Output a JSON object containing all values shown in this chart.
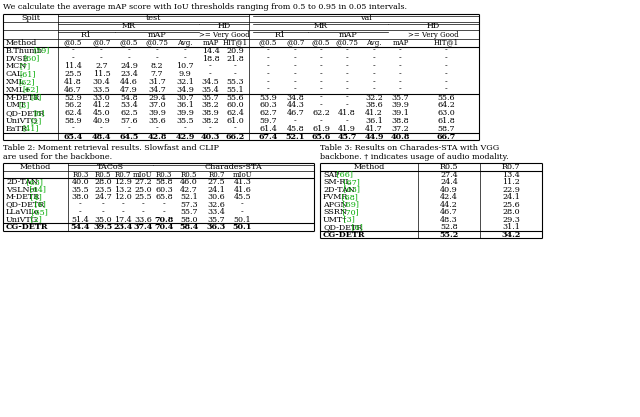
{
  "top_text": "We calculate the average mAP score with IoU thresholds ranging from 0.5 to 0.95 in 0.05 intervals.",
  "table2_caption_l1": "Table 2: Moment retrieval results. Slowfast and CLIP",
  "table2_caption_l2": "are used for the backbone.",
  "table3_caption_l1": "Table 3: Results on Charades-STA with VGG",
  "table3_caption_l2": "backbone. † indicates usage of audio modality.",
  "green": "#00aa00",
  "black": "#000000",
  "table1": {
    "rows": [
      [
        "B.Thumb [59]",
        "B.Thumb",
        "[59]",
        "-",
        "-",
        "-",
        "-",
        "-",
        "14.4",
        "20.9",
        "-",
        "-",
        "-",
        "-",
        "-",
        "-",
        "-"
      ],
      [
        "DVSE [60]",
        "DVSE",
        "[60]",
        "-",
        "-",
        "-",
        "-",
        "-",
        "18.8",
        "21.8",
        "-",
        "-",
        "-",
        "-",
        "-",
        "-",
        "-"
      ],
      [
        "MCN [7]",
        "MCN",
        "[7]",
        "11.4",
        "2.7",
        "24.9",
        "8.2",
        "10.7",
        "-",
        "-",
        "-",
        "-",
        "-",
        "-",
        "-",
        "-",
        "-"
      ],
      [
        "CAL [61]",
        "CAL",
        "[61]",
        "25.5",
        "11.5",
        "23.4",
        "7.7",
        "9.9",
        "-",
        "-",
        "-",
        "-",
        "-",
        "-",
        "-",
        "-",
        "-"
      ],
      [
        "XML [62]",
        "XML",
        "[62]",
        "41.8",
        "30.4",
        "44.6",
        "31.7",
        "32.1",
        "34.5",
        "55.3",
        "-",
        "-",
        "-",
        "-",
        "-",
        "-",
        "-"
      ],
      [
        "XML+[62]",
        "XML+",
        "[62]",
        "46.7",
        "33.5",
        "47.9",
        "34.7",
        "34.9",
        "35.4",
        "55.1",
        "-",
        "-",
        "-",
        "-",
        "-",
        "-",
        "-"
      ],
      [
        "M-DETR [4]",
        "M-DETR",
        "[4]",
        "52.9",
        "33.0",
        "54.8",
        "29.4",
        "30.7",
        "35.7",
        "55.6",
        "53.9",
        "34.8",
        "-",
        "-",
        "32.2",
        "35.7",
        "55.6"
      ],
      [
        "UMT [3]",
        "UMT",
        "[3]",
        "56.2",
        "41.2",
        "53.4",
        "37.0",
        "36.1",
        "38.2",
        "60.0",
        "60.3",
        "44.3",
        "-",
        "-",
        "38.6",
        "39.9",
        "64.2"
      ],
      [
        "QD-DETR [6]",
        "QD-DETR",
        "[6]",
        "62.4",
        "45.0",
        "62.5",
        "39.9",
        "39.9",
        "38.9",
        "62.4",
        "62.7",
        "46.7",
        "62.2",
        "41.8",
        "41.2",
        "39.1",
        "63.0"
      ],
      [
        "UniVTG [2]",
        "UniVTG",
        "[2]",
        "58.9",
        "40.9",
        "57.6",
        "35.6",
        "35.5",
        "38.2",
        "61.0",
        "59.7",
        "-",
        "-",
        "-",
        "36.1",
        "38.8",
        "61.8"
      ],
      [
        "EaTR [41]",
        "EaTR",
        "[41]",
        "-",
        "-",
        "-",
        "-",
        "-",
        "-",
        "-",
        "61.4",
        "45.8",
        "61.9",
        "41.9",
        "41.7",
        "37.2",
        "58.7"
      ],
      [
        "CG-DETR",
        "",
        "",
        "65.4",
        "48.4",
        "64.5",
        "42.8",
        "42.9",
        "40.3",
        "66.2",
        "67.4",
        "52.1",
        "65.6",
        "45.7",
        "44.9",
        "40.8",
        "66.7"
      ]
    ]
  },
  "table2": {
    "rows": [
      [
        "2D-TAN",
        "[63]",
        "40.0",
        "28.0",
        "12.9",
        "27.2",
        "58.8",
        "46.0",
        "27.5",
        "41.3"
      ],
      [
        "VSLNet",
        "[64]",
        "35.5",
        "23.5",
        "13.2",
        "25.0",
        "60.3",
        "42.7",
        "24.1",
        "41.6"
      ],
      [
        "M-DETR",
        "[4]",
        "38.0",
        "24.7",
        "12.0",
        "25.5",
        "65.8",
        "52.1",
        "30.6",
        "45.5"
      ],
      [
        "QD-DETR",
        "[6]",
        "-",
        "-",
        "-",
        "-",
        "-",
        "57.3",
        "32.6",
        "-"
      ],
      [
        "LLaViLo",
        "[65]",
        "-",
        "-",
        "-",
        "-",
        "-",
        "55.7",
        "33.4",
        "-"
      ],
      [
        "UniVTG",
        "[2]",
        "51.4",
        "35.0",
        "17.4",
        "33.6",
        "70.8",
        "58.0",
        "35.7",
        "50.1"
      ],
      [
        "CG-DETR",
        "",
        "54.4",
        "39.5",
        "23.4",
        "37.4",
        "70.4",
        "58.4",
        "36.3",
        "50.1"
      ]
    ]
  },
  "table3": {
    "rows": [
      [
        "SAP",
        "[66]",
        "27.4",
        "13.4"
      ],
      [
        "SM-RL",
        "[67]",
        "24.4",
        "11.2"
      ],
      [
        "2D-TAN",
        "[63]",
        "40.9",
        "22.9"
      ],
      [
        "FVMR",
        "[68]",
        "42.4",
        "24.1"
      ],
      [
        "APGN",
        "[69]",
        "44.2",
        "25.6"
      ],
      [
        "SSRN",
        "[70]",
        "46.7",
        "28.0"
      ],
      [
        "UMT†",
        "[3]",
        "48.3",
        "29.3"
      ],
      [
        "QD-DETR",
        "[6]",
        "52.8",
        "31.1"
      ],
      [
        "CG-DETR",
        "",
        "55.2",
        "34.2"
      ]
    ]
  }
}
